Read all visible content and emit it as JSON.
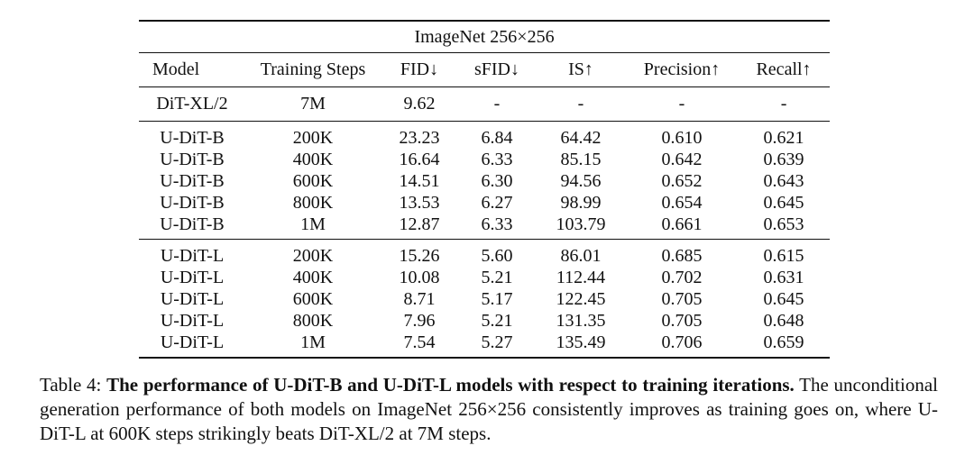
{
  "table": {
    "title": "ImageNet 256×256",
    "columns": [
      "Model",
      "Training Steps",
      "FID↓",
      "sFID↓",
      "IS↑",
      "Precision↑",
      "Recall↑"
    ],
    "groups": [
      {
        "rows": [
          {
            "cells": [
              "DiT-XL/2",
              "7M",
              "9.62",
              "-",
              "-",
              "-",
              "-"
            ],
            "bold": []
          }
        ]
      },
      {
        "rows": [
          {
            "cells": [
              "U-DiT-B",
              "200K",
              "23.23",
              "6.84",
              "64.42",
              "0.610",
              "0.621"
            ],
            "bold": []
          },
          {
            "cells": [
              "U-DiT-B",
              "400K",
              "16.64",
              "6.33",
              "85.15",
              "0.642",
              "0.639"
            ],
            "bold": []
          },
          {
            "cells": [
              "U-DiT-B",
              "600K",
              "14.51",
              "6.30",
              "94.56",
              "0.652",
              "0.643"
            ],
            "bold": []
          },
          {
            "cells": [
              "U-DiT-B",
              "800K",
              "13.53",
              "6.27",
              "98.99",
              "0.654",
              "0.645"
            ],
            "bold": [
              3
            ]
          },
          {
            "cells": [
              "U-DiT-B",
              "1M",
              "12.87",
              "6.33",
              "103.79",
              "0.661",
              "0.653"
            ],
            "bold": [
              2,
              4,
              5,
              6
            ]
          }
        ]
      },
      {
        "rows": [
          {
            "cells": [
              "U-DiT-L",
              "200K",
              "15.26",
              "5.60",
              "86.01",
              "0.685",
              "0.615"
            ],
            "bold": []
          },
          {
            "cells": [
              "U-DiT-L",
              "400K",
              "10.08",
              "5.21",
              "112.44",
              "0.702",
              "0.631"
            ],
            "bold": []
          },
          {
            "cells": [
              "U-DiT-L",
              "600K",
              "8.71",
              "5.17",
              "122.45",
              "0.705",
              "0.645"
            ],
            "bold": [
              3
            ]
          },
          {
            "cells": [
              "U-DiT-L",
              "800K",
              "7.96",
              "5.21",
              "131.35",
              "0.705",
              "0.648"
            ],
            "bold": []
          },
          {
            "cells": [
              "U-DiT-L",
              "1M",
              "7.54",
              "5.27",
              "135.49",
              "0.706",
              "0.659"
            ],
            "bold": [
              2,
              4,
              5,
              6
            ]
          }
        ]
      }
    ]
  },
  "caption": {
    "label": "Table 4:",
    "bold_text": "The performance of U-DiT-B and U-DiT-L models with respect to training iterations.",
    "body": "The unconditional generation performance of both models on ImageNet 256×256 consistently improves as training goes on, where U-DiT-L at 600K steps strikingly beats DiT-XL/2 at 7M steps."
  }
}
